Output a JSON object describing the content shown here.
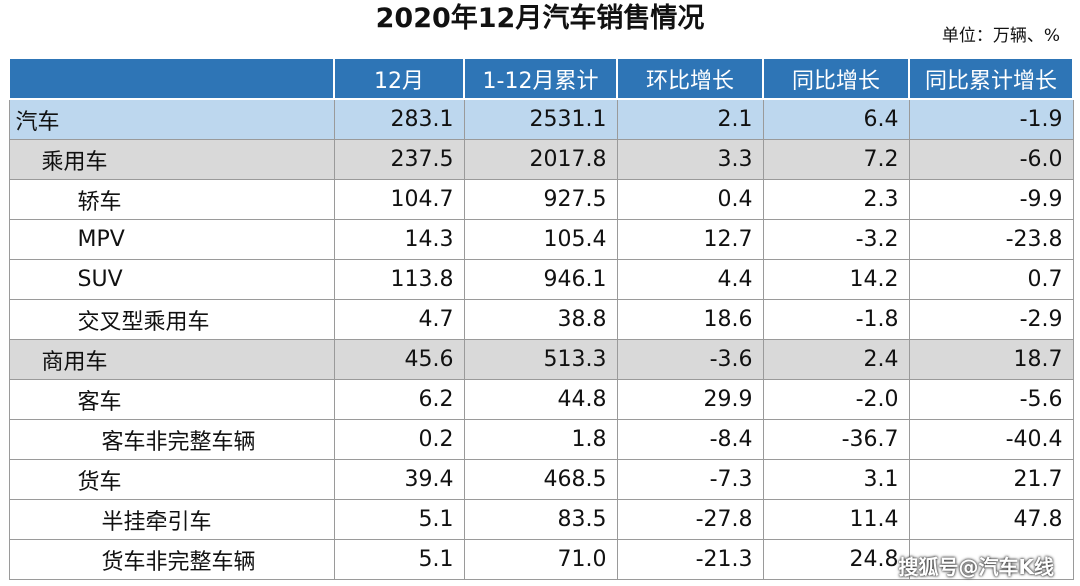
{
  "title": "2020年12月汽车销售情况",
  "unit": "单位：万辆、%",
  "headers": [
    "",
    "12月",
    "1-12月累计",
    "环比增长",
    "同比增长",
    "同比累计增长"
  ],
  "rows": [
    {
      "name": "汽车",
      "values": [
        "283.1",
        "2531.1",
        "2.1",
        "6.4",
        "-1.9"
      ]
    },
    {
      "name": "乘用车",
      "values": [
        "237.5",
        "2017.8",
        "3.3",
        "7.2",
        "-6.0"
      ]
    },
    {
      "name": "轿车",
      "values": [
        "104.7",
        "927.5",
        "0.4",
        "2.3",
        "-9.9"
      ]
    },
    {
      "name": "MPV",
      "values": [
        "14.3",
        "105.4",
        "12.7",
        "-3.2",
        "-23.8"
      ]
    },
    {
      "name": "SUV",
      "values": [
        "113.8",
        "946.1",
        "4.4",
        "14.2",
        "0.7"
      ]
    },
    {
      "name": "交叉型乘用车",
      "values": [
        "4.7",
        "38.8",
        "18.6",
        "-1.8",
        "-2.9"
      ]
    },
    {
      "name": "商用车",
      "values": [
        "45.6",
        "513.3",
        "-3.6",
        "2.4",
        "18.7"
      ]
    },
    {
      "name": "客车",
      "values": [
        "6.2",
        "44.8",
        "29.9",
        "-2.0",
        "-5.6"
      ]
    },
    {
      "name": "客车非完整车辆",
      "values": [
        "0.2",
        "1.8",
        "-8.4",
        "-36.7",
        "-40.4"
      ]
    },
    {
      "name": "货车",
      "values": [
        "39.4",
        "468.5",
        "-7.3",
        "3.1",
        "21.7"
      ]
    },
    {
      "name": "半挂牵引车",
      "values": [
        "5.1",
        "83.5",
        "-27.8",
        "11.4",
        "47.8"
      ]
    },
    {
      "name": "货车非完整车辆",
      "values": [
        "5.1",
        "71.0",
        "-21.3",
        "24.8",
        ""
      ]
    }
  ],
  "watermark": "搜狐号@汽车K线",
  "colors": {
    "header_bg": "#2e75b6",
    "total_row_bg": "#bdd7ee",
    "group_row_bg": "#d9d9d9"
  }
}
